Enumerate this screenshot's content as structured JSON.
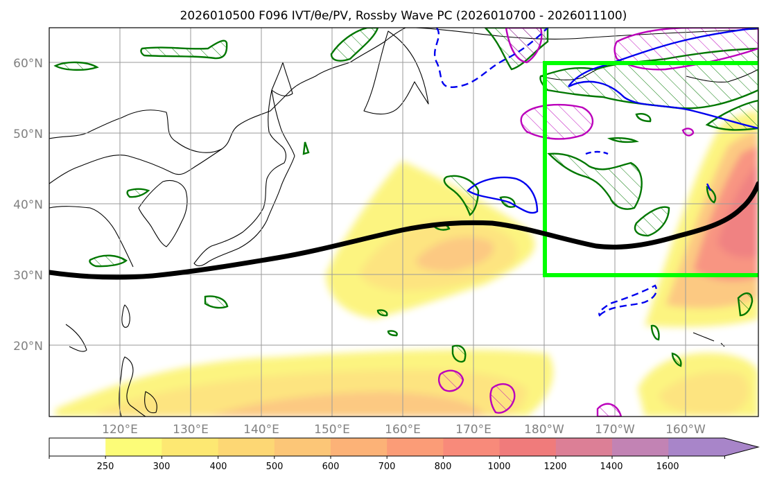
{
  "title": "2026010500 F096 IVT/θe/PV, Rossby Wave PC (2026010700 - 2026011100)",
  "lat_labels": [
    "20°N",
    "30°N",
    "40°N",
    "50°N",
    "60°N"
  ],
  "lon_labels": [
    "120°E",
    "130°E",
    "140°E",
    "150°E",
    "160°E",
    "170°E",
    "180°W",
    "170°W",
    "160°W"
  ],
  "colorbar": {
    "labels": [
      "250",
      "300",
      "400",
      "500",
      "600",
      "700",
      "800",
      "1000",
      "1200",
      "1400",
      "1600"
    ],
    "colors": [
      "#ffffff",
      "#fcfc78",
      "#fde872",
      "#fdd774",
      "#fcc677",
      "#fcb277",
      "#fb9c77",
      "#f88a7a",
      "#f07b7b",
      "#dc7f96",
      "#c283b4",
      "#a885c9"
    ]
  },
  "colors": {
    "pv_contour": "#007700",
    "theta_pos": "#bb00bb",
    "theta_neg": "#0000ee",
    "box": "#00ff00",
    "jet": "#000000"
  }
}
